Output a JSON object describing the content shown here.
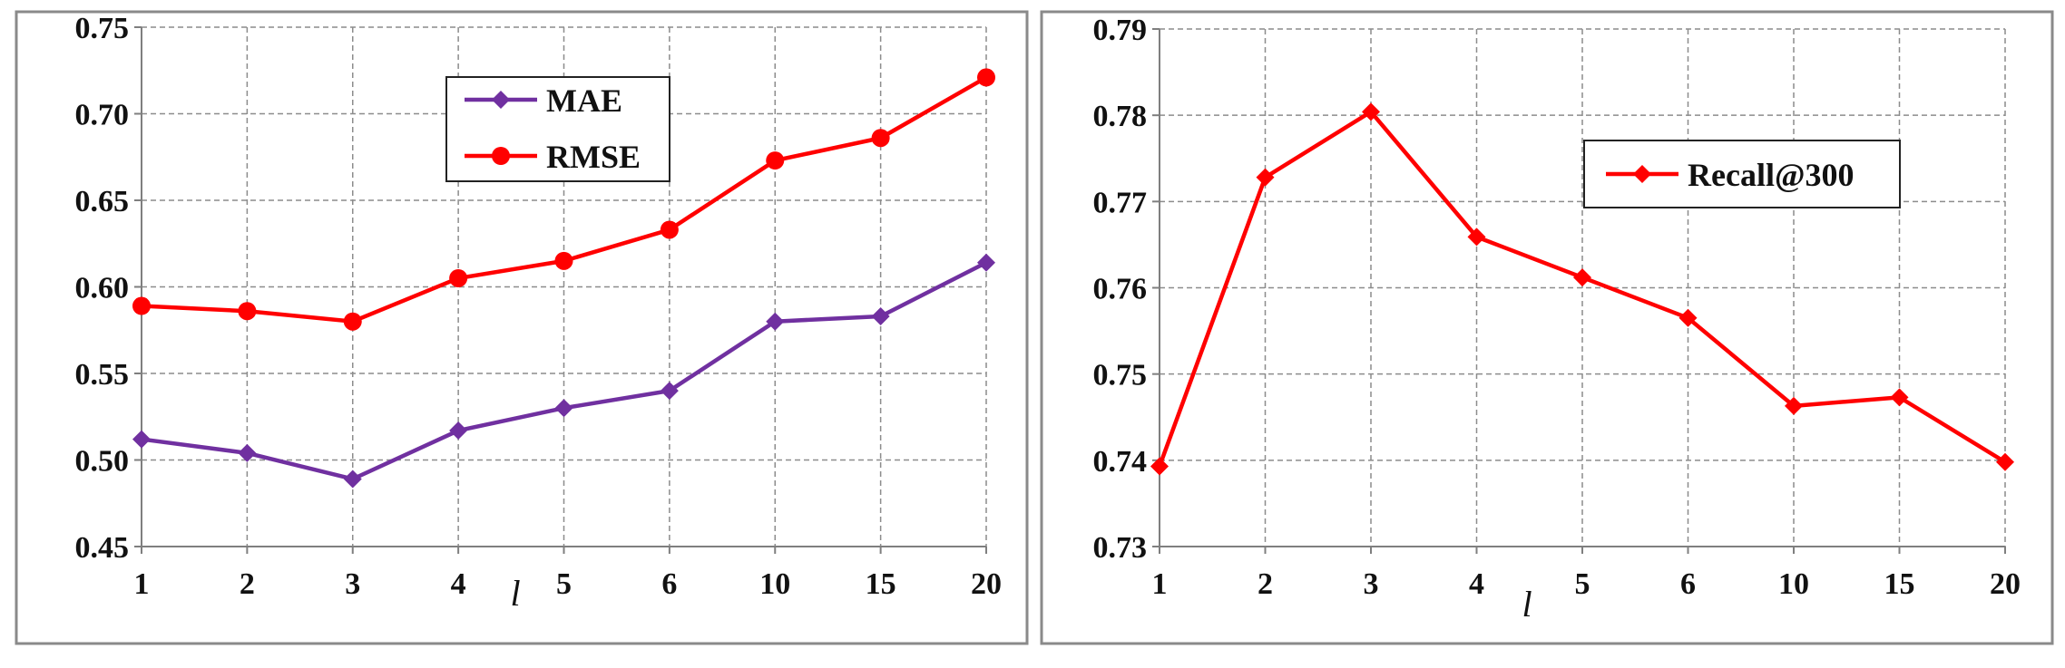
{
  "chart_data": [
    {
      "type": "line",
      "title": "",
      "xlabel": "l",
      "ylabel": "",
      "categories": [
        "1",
        "2",
        "3",
        "4",
        "5",
        "6",
        "10",
        "15",
        "20"
      ],
      "ylim": [
        0.45,
        0.75
      ],
      "yticks": [
        "0.45",
        "0.50",
        "0.55",
        "0.60",
        "0.65",
        "0.70",
        "0.75"
      ],
      "grid": true,
      "legend_position": "top-center",
      "series": [
        {
          "name": "MAE",
          "color": "#7030a0",
          "marker": "diamond",
          "values": [
            0.512,
            0.504,
            0.489,
            0.517,
            0.53,
            0.54,
            0.58,
            0.583,
            0.614
          ]
        },
        {
          "name": "RMSE",
          "color": "#ff0000",
          "marker": "circle",
          "values": [
            0.589,
            0.586,
            0.58,
            0.605,
            0.615,
            0.633,
            0.673,
            0.686,
            0.721
          ]
        }
      ]
    },
    {
      "type": "line",
      "title": "",
      "xlabel": "l",
      "ylabel": "",
      "categories": [
        "1",
        "2",
        "3",
        "4",
        "5",
        "6",
        "10",
        "15",
        "20"
      ],
      "ylim": [
        0.73,
        0.79
      ],
      "yticks": [
        "0.73",
        "0.74",
        "0.75",
        "0.76",
        "0.77",
        "0.78",
        "0.79"
      ],
      "grid": true,
      "legend_position": "top-right",
      "series": [
        {
          "name": "Recall@300",
          "color": "#ff0000",
          "marker": "diamond",
          "values": [
            0.7393,
            0.7728,
            0.7804,
            0.7659,
            0.7612,
            0.7565,
            0.7463,
            0.7473,
            0.7398
          ]
        }
      ]
    }
  ]
}
